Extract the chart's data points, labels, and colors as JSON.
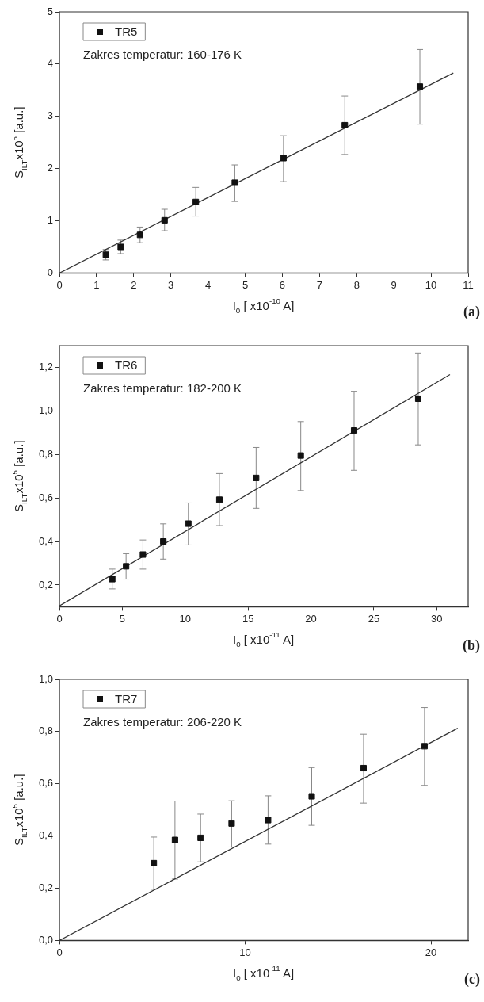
{
  "chart_data": [
    {
      "type": "scatter",
      "xlabel": "I$_{0}$ [ x10$^{-10}$ A]",
      "ylabel": "S$_{ILT}$x10$^{5}$ [a.u.]",
      "xlim": [
        0,
        11
      ],
      "ylim": [
        0,
        5
      ],
      "xticks": [
        0,
        1,
        2,
        3,
        4,
        5,
        6,
        7,
        8,
        9,
        10,
        11
      ],
      "yticks": [
        0,
        1,
        2,
        3,
        4,
        5
      ],
      "legend": "top left",
      "marker": "square",
      "annotations": [
        "Zakres temperatur: 160-176 K",
        "(a)"
      ],
      "series": [
        {
          "name": "TR5",
          "color": "#111111",
          "x": [
            1.25,
            1.65,
            2.17,
            2.83,
            3.67,
            4.72,
            6.03,
            7.68,
            9.7
          ],
          "values": [
            0.35,
            0.5,
            0.73,
            1.01,
            1.36,
            1.73,
            2.2,
            2.83,
            3.57
          ],
          "errors": [
            [
              0.25,
              0.45
            ],
            [
              0.37,
              0.63
            ],
            [
              0.58,
              0.88
            ],
            [
              0.81,
              1.22
            ],
            [
              1.09,
              1.64
            ],
            [
              1.37,
              2.07
            ],
            [
              1.75,
              2.63
            ],
            [
              2.27,
              3.39
            ],
            [
              2.85,
              4.28
            ]
          ]
        },
        {
          "type": "line",
          "marker": "none",
          "color": "#333333",
          "x": [
            0,
            10.6
          ],
          "values": [
            0,
            3.83
          ]
        }
      ]
    },
    {
      "type": "scatter",
      "xlabel": "I$_{0}$ [ x10$^{-11}$ A]",
      "ylabel": "S$_{ILT}$x10$^{5}$ [a.u.]",
      "xlim": [
        0,
        32.5
      ],
      "ylim": [
        0.1,
        1.3
      ],
      "xticks": [
        0,
        5,
        10,
        15,
        20,
        25,
        30
      ],
      "yticks": [
        {
          "value": 0.2,
          "label": "0,2"
        },
        {
          "value": 0.4,
          "label": "0,4"
        },
        {
          "value": 0.6,
          "label": "0,6"
        },
        {
          "value": 0.8,
          "label": "0,8"
        },
        {
          "value": 1.0,
          "label": "1,0"
        },
        {
          "value": 1.2,
          "label": "1,2"
        }
      ],
      "legend": "top left",
      "marker": "square",
      "annotations": [
        "Zakres temperatur: 182-200 K",
        "(b)"
      ],
      "series": [
        {
          "name": "TR6",
          "color": "#111111",
          "x": [
            4.2,
            5.3,
            6.64,
            8.26,
            10.25,
            12.72,
            15.64,
            19.19,
            23.43,
            28.53
          ],
          "values": [
            0.227,
            0.286,
            0.34,
            0.4,
            0.482,
            0.592,
            0.692,
            0.795,
            0.91,
            1.056
          ],
          "errors": [
            [
              0.182,
              0.273
            ],
            [
              0.227,
              0.344
            ],
            [
              0.273,
              0.407
            ],
            [
              0.319,
              0.481
            ],
            [
              0.384,
              0.577
            ],
            [
              0.473,
              0.712
            ],
            [
              0.552,
              0.832
            ],
            [
              0.634,
              0.951
            ],
            [
              0.727,
              1.09
            ],
            [
              0.844,
              1.266
            ]
          ]
        },
        {
          "type": "line",
          "marker": "none",
          "color": "#333333",
          "x": [
            0,
            31.05
          ],
          "values": [
            0.104,
            1.167
          ]
        }
      ]
    },
    {
      "type": "scatter",
      "xlabel": "I$_{0}$ [ x10$^{-11}$ A]",
      "ylabel": "S$_{ILT}$x10$^{5}$ [a.u.]",
      "xlim": [
        0,
        22
      ],
      "ylim": [
        0,
        1
      ],
      "xticks": [
        0,
        10,
        20
      ],
      "yticks": [
        {
          "value": 0,
          "label": "0,0"
        },
        {
          "value": 0.2,
          "label": "0,2"
        },
        {
          "value": 0.4,
          "label": "0,4"
        },
        {
          "value": 0.6,
          "label": "0,6"
        },
        {
          "value": 0.8,
          "label": "0,8"
        },
        {
          "value": 1.0,
          "label": "1,0"
        }
      ],
      "legend": "top left",
      "marker": "square",
      "annotations": [
        "Zakres temperatur: 206-220 K",
        "(c)"
      ],
      "series": [
        {
          "name": "TR7",
          "color": "#111111",
          "x": [
            5.08,
            6.22,
            7.6,
            9.27,
            11.23,
            13.58,
            16.37,
            19.65
          ],
          "values": [
            0.296,
            0.385,
            0.393,
            0.448,
            0.461,
            0.552,
            0.66,
            0.744
          ],
          "errors": [
            [
              0.196,
              0.396
            ],
            [
              0.235,
              0.534
            ],
            [
              0.301,
              0.484
            ],
            [
              0.358,
              0.535
            ],
            [
              0.369,
              0.554
            ],
            [
              0.441,
              0.662
            ],
            [
              0.526,
              0.79
            ],
            [
              0.594,
              0.892
            ]
          ]
        },
        {
          "type": "line",
          "marker": "none",
          "color": "#333333",
          "x": [
            0,
            21.44
          ],
          "values": [
            0,
            0.813
          ]
        }
      ]
    }
  ]
}
